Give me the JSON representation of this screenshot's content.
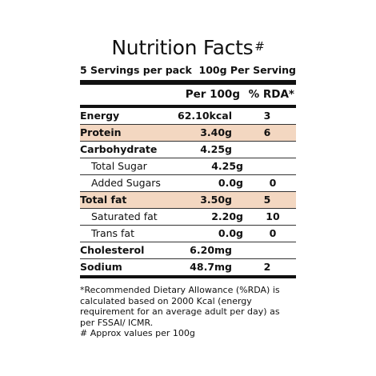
{
  "label": {
    "title": "Nutrition Facts",
    "title_mark": "#",
    "servings_per_pack": "5 Servings per pack",
    "serving_size": "100g Per Serving",
    "columns": {
      "nutrient": "",
      "per100g": "Per 100g",
      "rda": "% RDA*"
    },
    "rows": [
      {
        "name": "Energy",
        "value": "62.10kcal",
        "rda": "3"
      },
      {
        "name": "Protein",
        "value": "3.40g",
        "rda": "6"
      },
      {
        "name": "Carbohydrate",
        "value": "4.25g",
        "rda": ""
      },
      {
        "name": "Total Sugar",
        "value": "4.25g",
        "rda": ""
      },
      {
        "name": "Added Sugars",
        "value": "0.0g",
        "rda": "0"
      },
      {
        "name": "Total fat",
        "value": "3.50g",
        "rda": "5"
      },
      {
        "name": "Saturated fat",
        "value": "2.20g",
        "rda": "10"
      },
      {
        "name": "Trans fat",
        "value": "0.0g",
        "rda": "0"
      },
      {
        "name": "Cholesterol",
        "value": "6.20mg",
        "rda": ""
      },
      {
        "name": "Sodium",
        "value": "48.7mg",
        "rda": "2"
      }
    ],
    "footnote_rda": "*Recommended Dietary Allowance (%RDA) is calculated based on 2000 Kcal (energy requirement for an average adult per day) as per FSSAI/ ICMR.",
    "footnote_approx": "# Approx values per 100g"
  },
  "colors": {
    "highlight": "#f3d7c1",
    "text": "#111111"
  }
}
